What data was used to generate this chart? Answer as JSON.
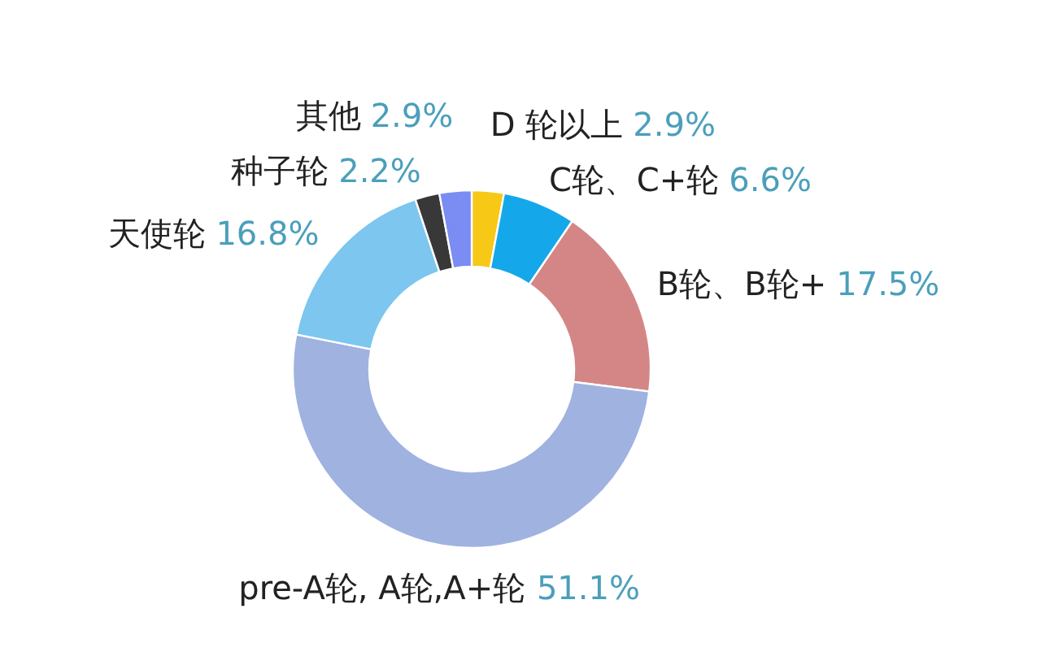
{
  "chart_data": {
    "type": "donut",
    "categories": [
      "D 轮以上",
      "C轮、C+轮",
      "B轮、B轮+",
      "pre-A轮, A轮,A+轮",
      "天使轮",
      "种子轮",
      "其他"
    ],
    "values": [
      2.9,
      6.6,
      17.5,
      51.1,
      16.8,
      2.2,
      2.9
    ],
    "colors": [
      "#f7c815",
      "#14a8ea",
      "#d48686",
      "#9fb2e0",
      "#7cc6ef",
      "#383838",
      "#7b8cf2"
    ],
    "value_labels": [
      "2.9%",
      "6.6%",
      "17.5%",
      "51.1%",
      "16.8%",
      "2.2%",
      "2.9%"
    ]
  }
}
